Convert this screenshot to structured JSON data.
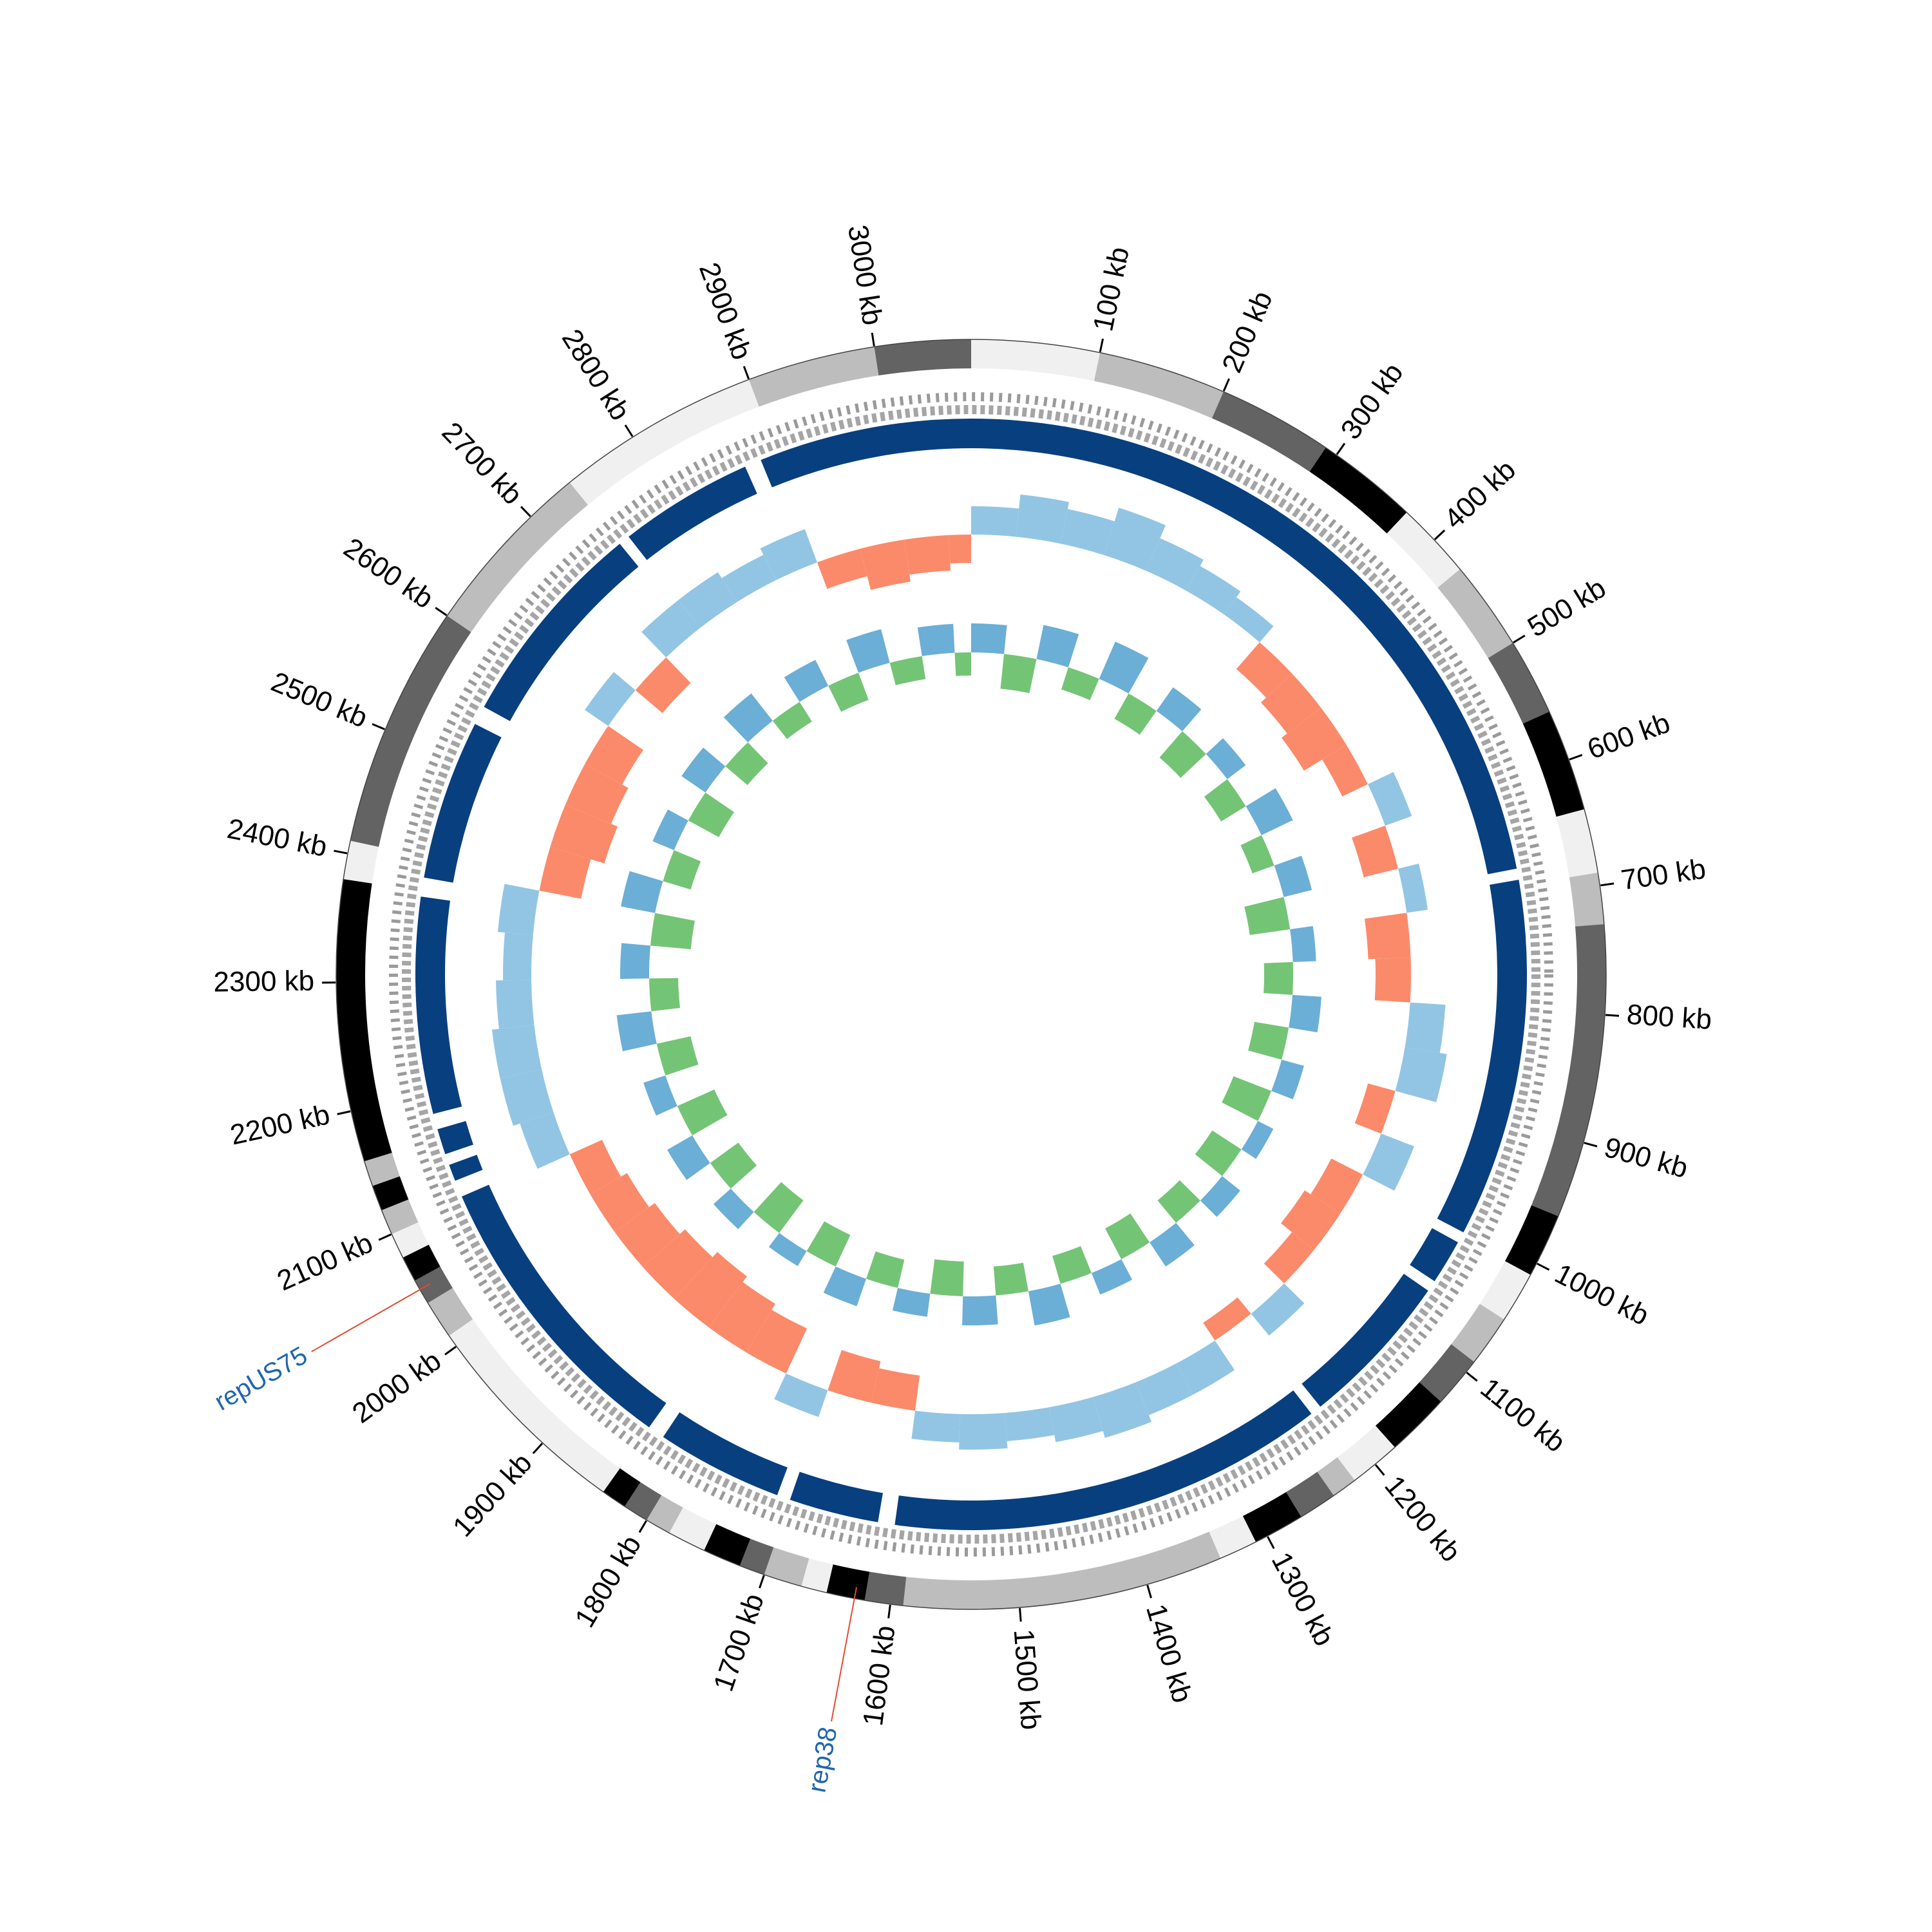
{
  "chart_data": {
    "type": "circos",
    "xlim": [
      0,
      3075
    ],
    "xticks": [
      {
        "value": 100,
        "label": "100 kb"
      },
      {
        "value": 200,
        "label": "200 kb"
      },
      {
        "value": 300,
        "label": "300 kb"
      },
      {
        "value": 400,
        "label": "400 kb"
      },
      {
        "value": 500,
        "label": "500 kb"
      },
      {
        "value": 600,
        "label": "600 kb"
      },
      {
        "value": 700,
        "label": "700 kb"
      },
      {
        "value": 800,
        "label": "800 kb"
      },
      {
        "value": 900,
        "label": "900 kb"
      },
      {
        "value": 1000,
        "label": "1000 kb"
      },
      {
        "value": 1100,
        "label": "1100 kb"
      },
      {
        "value": 1200,
        "label": "1200 kb"
      },
      {
        "value": 1300,
        "label": "1300 kb"
      },
      {
        "value": 1400,
        "label": "1400 kb"
      },
      {
        "value": 1500,
        "label": "1500 kb"
      },
      {
        "value": 1600,
        "label": "1600 kb"
      },
      {
        "value": 1700,
        "label": "1700 kb"
      },
      {
        "value": 1800,
        "label": "1800 kb"
      },
      {
        "value": 1900,
        "label": "1900 kb"
      },
      {
        "value": 2000,
        "label": "2000 kb"
      },
      {
        "value": 2100,
        "label": "2100 kb"
      },
      {
        "value": 2200,
        "label": "2200 kb"
      },
      {
        "value": 2300,
        "label": "2300 kb"
      },
      {
        "value": 2400,
        "label": "2400 kb"
      },
      {
        "value": 2500,
        "label": "2500 kb"
      },
      {
        "value": 2600,
        "label": "2600 kb"
      },
      {
        "value": 2700,
        "label": "2700 kb"
      },
      {
        "value": 2800,
        "label": "2800 kb"
      },
      {
        "value": 2900,
        "label": "2900 kb"
      },
      {
        "value": 3000,
        "label": "3000 kb"
      }
    ],
    "bands": [
      {
        "start": 0,
        "end": 100,
        "color": "#f0f0f0"
      },
      {
        "start": 100,
        "end": 200,
        "color": "#bdbdbd"
      },
      {
        "start": 200,
        "end": 290,
        "color": "#636363"
      },
      {
        "start": 290,
        "end": 370,
        "color": "#000000"
      },
      {
        "start": 370,
        "end": 430,
        "color": "#f0f0f0"
      },
      {
        "start": 430,
        "end": 500,
        "color": "#bdbdbd"
      },
      {
        "start": 500,
        "end": 560,
        "color": "#636363"
      },
      {
        "start": 560,
        "end": 640,
        "color": "#000000"
      },
      {
        "start": 640,
        "end": 690,
        "color": "#f0f0f0"
      },
      {
        "start": 690,
        "end": 730,
        "color": "#bdbdbd"
      },
      {
        "start": 730,
        "end": 960,
        "color": "#636363"
      },
      {
        "start": 960,
        "end": 1010,
        "color": "#000000"
      },
      {
        "start": 1010,
        "end": 1050,
        "color": "#f0f0f0"
      },
      {
        "start": 1050,
        "end": 1090,
        "color": "#bdbdbd"
      },
      {
        "start": 1090,
        "end": 1130,
        "color": "#636363"
      },
      {
        "start": 1130,
        "end": 1180,
        "color": "#000000"
      },
      {
        "start": 1180,
        "end": 1220,
        "color": "#f0f0f0"
      },
      {
        "start": 1220,
        "end": 1240,
        "color": "#bdbdbd"
      },
      {
        "start": 1240,
        "end": 1270,
        "color": "#636363"
      },
      {
        "start": 1270,
        "end": 1310,
        "color": "#000000"
      },
      {
        "start": 1310,
        "end": 1340,
        "color": "#f0f0f0"
      },
      {
        "start": 1340,
        "end": 1590,
        "color": "#bdbdbd"
      },
      {
        "start": 1590,
        "end": 1620,
        "color": "#636363"
      },
      {
        "start": 1620,
        "end": 1650,
        "color": "#000000"
      },
      {
        "start": 1650,
        "end": 1670,
        "color": "#f0f0f0"
      },
      {
        "start": 1670,
        "end": 1700,
        "color": "#bdbdbd"
      },
      {
        "start": 1700,
        "end": 1720,
        "color": "#636363"
      },
      {
        "start": 1720,
        "end": 1750,
        "color": "#000000"
      },
      {
        "start": 1750,
        "end": 1780,
        "color": "#f0f0f0"
      },
      {
        "start": 1780,
        "end": 1800,
        "color": "#bdbdbd"
      },
      {
        "start": 1800,
        "end": 1820,
        "color": "#636363"
      },
      {
        "start": 1820,
        "end": 1840,
        "color": "#000000"
      },
      {
        "start": 1840,
        "end": 2010,
        "color": "#f0f0f0"
      },
      {
        "start": 2010,
        "end": 2040,
        "color": "#bdbdbd"
      },
      {
        "start": 2040,
        "end": 2060,
        "color": "#636363"
      },
      {
        "start": 2060,
        "end": 2080,
        "color": "#000000"
      },
      {
        "start": 2080,
        "end": 2100,
        "color": "#f0f0f0"
      },
      {
        "start": 2100,
        "end": 2120,
        "color": "#bdbdbd"
      },
      {
        "start": 2120,
        "end": 2140,
        "color": "#000000"
      },
      {
        "start": 2140,
        "end": 2160,
        "color": "#bdbdbd"
      },
      {
        "start": 2160,
        "end": 2380,
        "color": "#000000"
      },
      {
        "start": 2380,
        "end": 2410,
        "color": "#f0f0f0"
      },
      {
        "start": 2410,
        "end": 2600,
        "color": "#636363"
      },
      {
        "start": 2600,
        "end": 2740,
        "color": "#bdbdbd"
      },
      {
        "start": 2740,
        "end": 2900,
        "color": "#f0f0f0"
      },
      {
        "start": 2900,
        "end": 3000,
        "color": "#bdbdbd"
      },
      {
        "start": 3000,
        "end": 3075,
        "color": "#636363"
      }
    ],
    "blocks_color": "#083f7f",
    "blocks": [
      {
        "start": 0,
        "end": 675
      },
      {
        "start": 685,
        "end": 1005
      },
      {
        "start": 1015,
        "end": 1055
      },
      {
        "start": 1065,
        "end": 1205
      },
      {
        "start": 1215,
        "end": 1605
      },
      {
        "start": 1620,
        "end": 1700
      },
      {
        "start": 1712,
        "end": 1825
      },
      {
        "start": 1840,
        "end": 2105
      },
      {
        "start": 2120,
        "end": 2135
      },
      {
        "start": 2145,
        "end": 2168
      },
      {
        "start": 2182,
        "end": 2375
      },
      {
        "start": 2392,
        "end": 2535
      },
      {
        "start": 2552,
        "end": 2740
      },
      {
        "start": 2750,
        "end": 2870
      },
      {
        "start": 2885,
        "end": 3075
      }
    ],
    "x": [
      0,
      50,
      100,
      150,
      200,
      250,
      300,
      350,
      400,
      450,
      500,
      550,
      600,
      650,
      700,
      750,
      800,
      850,
      900,
      950,
      1000,
      1050,
      1100,
      1150,
      1200,
      1250,
      1300,
      1350,
      1400,
      1450,
      1500,
      1550,
      1600,
      1650,
      1700,
      1750,
      1800,
      1850,
      1900,
      1950,
      2000,
      2050,
      2100,
      2150,
      2200,
      2250,
      2300,
      2350,
      2400,
      2450,
      2500,
      2550,
      2600,
      2650,
      2700,
      2750,
      2800,
      2850,
      2900,
      2950,
      3000,
      3050
    ],
    "ylim": [
      -0.1,
      0.1
    ],
    "series": [
      {
        "color": "#92c5e3",
        "negative_color": "#fb8a6a",
        "values": [
          0.04,
          0.06,
          0.05,
          0.07,
          0.05,
          0.04,
          0.03,
          -0.05,
          -0.06,
          -0.07,
          -0.04,
          0.04,
          -0.05,
          0.03,
          -0.06,
          -0.05,
          0.05,
          0.06,
          -0.04,
          0.05,
          -0.05,
          -0.06,
          -0.04,
          0.04,
          -0.03,
          0.05,
          0.05,
          0.06,
          0.05,
          0.04,
          0.05,
          0.04,
          -0.05,
          -0.06,
          0.04,
          -0.07,
          -0.08,
          -0.09,
          -0.08,
          -0.07,
          -0.06,
          -0.05,
          0.05,
          0.06,
          0.06,
          0.05,
          0.04,
          0.05,
          -0.06,
          -0.08,
          -0.07,
          -0.06,
          0.04,
          -0.05,
          0.05,
          0.05,
          0.04,
          0.05,
          -0.04,
          -0.06,
          -0.05,
          -0.04
        ]
      },
      {
        "color": "#6baed6",
        "negative_color": "#74c476",
        "values": [
          0.05,
          -0.06,
          0.06,
          -0.04,
          0.07,
          -0.05,
          0.05,
          -0.06,
          0.04,
          -0.05,
          0.06,
          -0.04,
          0.05,
          -0.07,
          0.04,
          -0.05,
          0.05,
          -0.06,
          0.04,
          -0.07,
          0.03,
          -0.06,
          0.04,
          -0.05,
          0.05,
          -0.06,
          0.04,
          -0.05,
          0.06,
          -0.05,
          0.05,
          -0.06,
          0.04,
          -0.05,
          0.05,
          -0.06,
          0.03,
          -0.07,
          0.04,
          -0.06,
          0.05,
          -0.07,
          0.04,
          -0.06,
          0.06,
          -0.05,
          0.05,
          -0.07,
          0.06,
          -0.05,
          0.04,
          -0.06,
          0.05,
          -0.05,
          0.06,
          -0.04,
          0.05,
          -0.05,
          0.06,
          -0.04,
          0.05,
          -0.04
        ]
      }
    ],
    "annotations": [
      {
        "text": "repUS75",
        "position": 2052,
        "color": "#2166ac",
        "line_color": "#e34a33"
      },
      {
        "text": "rep38",
        "position": 1628,
        "color": "#2166ac",
        "line_color": "#e34a33"
      }
    ]
  }
}
